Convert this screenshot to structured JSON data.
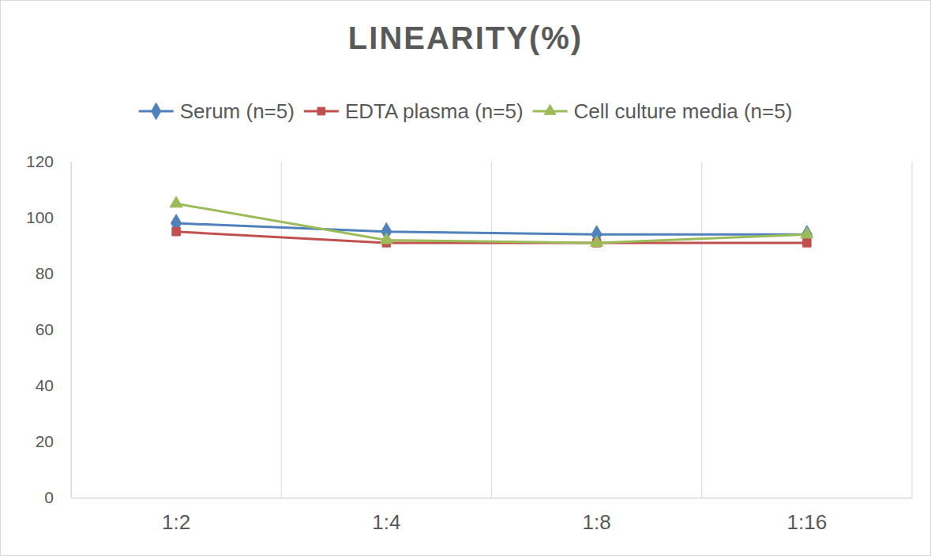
{
  "chart_data": {
    "type": "line",
    "title": "LINEARITY(%)",
    "categories": [
      "1:2",
      "1:4",
      "1:8",
      "1:16"
    ],
    "series": [
      {
        "name": "Serum (n=5)",
        "color": "#4f81bd",
        "marker": "diamond",
        "values": [
          98,
          95,
          94,
          94
        ]
      },
      {
        "name": "EDTA plasma (n=5)",
        "color": "#c0504d",
        "marker": "square",
        "values": [
          95,
          91,
          91,
          91
        ]
      },
      {
        "name": "Cell culture media (n=5)",
        "color": "#9bbb59",
        "marker": "triangle",
        "values": [
          105,
          92,
          91,
          94
        ]
      }
    ],
    "ylim": [
      0,
      120
    ],
    "yticks": [
      0,
      20,
      40,
      60,
      80,
      100,
      120
    ],
    "grid": true,
    "legend": "top"
  }
}
